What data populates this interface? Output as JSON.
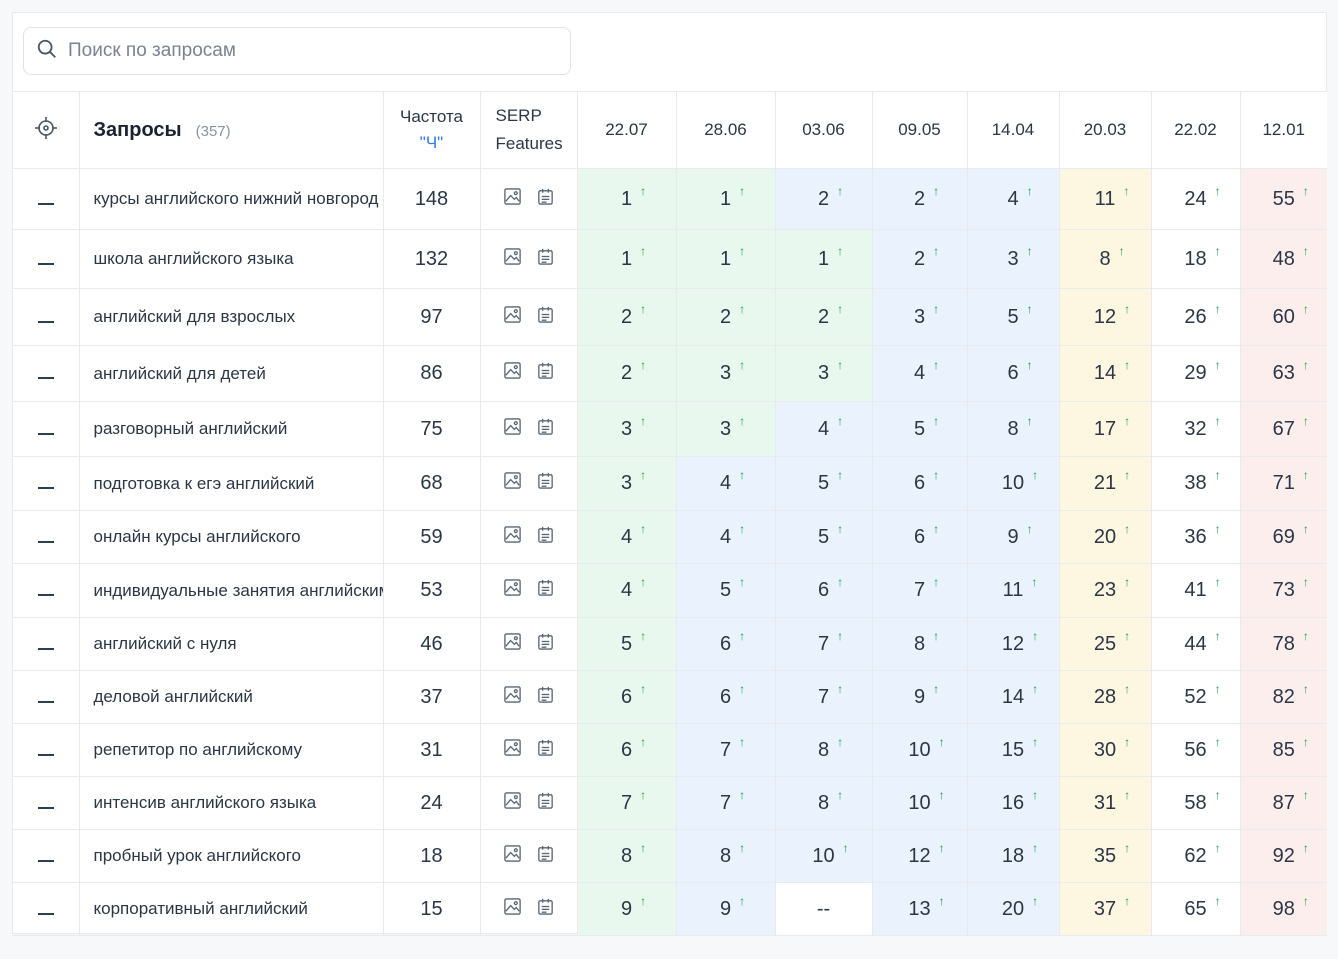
{
  "search": {
    "placeholder": "Поиск по запросам"
  },
  "header": {
    "queries_title": "Запросы",
    "queries_count": "(357)",
    "freq_label": "Частота",
    "freq_sub": "\"Ч\"",
    "serp_line1": "SERP",
    "serp_line2": "Features",
    "dates": [
      "22.07",
      "28.06",
      "03.06",
      "09.05",
      "14.04",
      "20.03",
      "22.02",
      "12.01"
    ]
  },
  "colors": {
    "green": "#e9f8ef",
    "blue": "#eaf2fd",
    "yellow": "#fdf7e2",
    "red": "#fdeeee",
    "arrow": "#1aa34a",
    "accent": "#2f7bf5"
  },
  "icons": [
    "crosshair-icon",
    "minus-icon",
    "image-icon",
    "list-icon",
    "search-icon",
    "arrow-up-icon"
  ],
  "rows": [
    {
      "query": "курсы английского нижний новгород",
      "freq": "148",
      "pos": [
        "1",
        "1",
        "2",
        "2",
        "4",
        "11",
        "24",
        "55"
      ],
      "bg": [
        "g",
        "g",
        "b",
        "b",
        "b",
        "y",
        "w",
        "r"
      ]
    },
    {
      "query": "школа английского языка",
      "freq": "132",
      "pos": [
        "1",
        "1",
        "1",
        "2",
        "3",
        "8",
        "18",
        "48"
      ],
      "bg": [
        "g",
        "g",
        "g",
        "b",
        "b",
        "y",
        "w",
        "r"
      ]
    },
    {
      "query": "английский для взрослых",
      "freq": "97",
      "pos": [
        "2",
        "2",
        "2",
        "3",
        "5",
        "12",
        "26",
        "60"
      ],
      "bg": [
        "g",
        "g",
        "g",
        "b",
        "b",
        "y",
        "w",
        "r"
      ]
    },
    {
      "query": "английский для детей",
      "freq": "86",
      "pos": [
        "2",
        "3",
        "3",
        "4",
        "6",
        "14",
        "29",
        "63"
      ],
      "bg": [
        "g",
        "g",
        "g",
        "b",
        "b",
        "y",
        "w",
        "r"
      ]
    },
    {
      "query": "разговорный английский",
      "freq": "75",
      "pos": [
        "3",
        "3",
        "4",
        "5",
        "8",
        "17",
        "32",
        "67"
      ],
      "bg": [
        "g",
        "g",
        "b",
        "b",
        "b",
        "y",
        "w",
        "r"
      ]
    },
    {
      "query": "подготовка к егэ английский",
      "freq": "68",
      "pos": [
        "3",
        "4",
        "5",
        "6",
        "10",
        "21",
        "38",
        "71"
      ],
      "bg": [
        "g",
        "b",
        "b",
        "b",
        "b",
        "y",
        "w",
        "r"
      ]
    },
    {
      "query": "онлайн курсы английского",
      "freq": "59",
      "pos": [
        "4",
        "4",
        "5",
        "6",
        "9",
        "20",
        "36",
        "69"
      ],
      "bg": [
        "g",
        "b",
        "b",
        "b",
        "b",
        "y",
        "w",
        "r"
      ]
    },
    {
      "query": "индивидуальные занятия английским",
      "freq": "53",
      "pos": [
        "4",
        "5",
        "6",
        "7",
        "11",
        "23",
        "41",
        "73"
      ],
      "bg": [
        "g",
        "b",
        "b",
        "b",
        "b",
        "y",
        "w",
        "r"
      ]
    },
    {
      "query": "английский с нуля",
      "freq": "46",
      "pos": [
        "5",
        "6",
        "7",
        "8",
        "12",
        "25",
        "44",
        "78"
      ],
      "bg": [
        "g",
        "b",
        "b",
        "b",
        "b",
        "y",
        "w",
        "r"
      ]
    },
    {
      "query": "деловой английский",
      "freq": "37",
      "pos": [
        "6",
        "6",
        "7",
        "9",
        "14",
        "28",
        "52",
        "82"
      ],
      "bg": [
        "g",
        "b",
        "b",
        "b",
        "b",
        "y",
        "w",
        "r"
      ]
    },
    {
      "query": "репетитор по английскому",
      "freq": "31",
      "pos": [
        "6",
        "7",
        "8",
        "10",
        "15",
        "30",
        "56",
        "85"
      ],
      "bg": [
        "g",
        "b",
        "b",
        "b",
        "b",
        "y",
        "w",
        "r"
      ]
    },
    {
      "query": "интенсив английского языка",
      "freq": "24",
      "pos": [
        "7",
        "7",
        "8",
        "10",
        "16",
        "31",
        "58",
        "87"
      ],
      "bg": [
        "g",
        "b",
        "b",
        "b",
        "b",
        "y",
        "w",
        "r"
      ]
    },
    {
      "query": "пробный урок английского",
      "freq": "18",
      "pos": [
        "8",
        "8",
        "10",
        "12",
        "18",
        "35",
        "62",
        "92"
      ],
      "bg": [
        "g",
        "b",
        "b",
        "b",
        "b",
        "y",
        "w",
        "r"
      ]
    },
    {
      "query": "корпоративный английский",
      "freq": "15",
      "pos": [
        "9",
        "9",
        "--",
        "13",
        "20",
        "37",
        "65",
        "98"
      ],
      "bg": [
        "g",
        "b",
        "w",
        "b",
        "b",
        "y",
        "w",
        "r"
      ]
    }
  ]
}
